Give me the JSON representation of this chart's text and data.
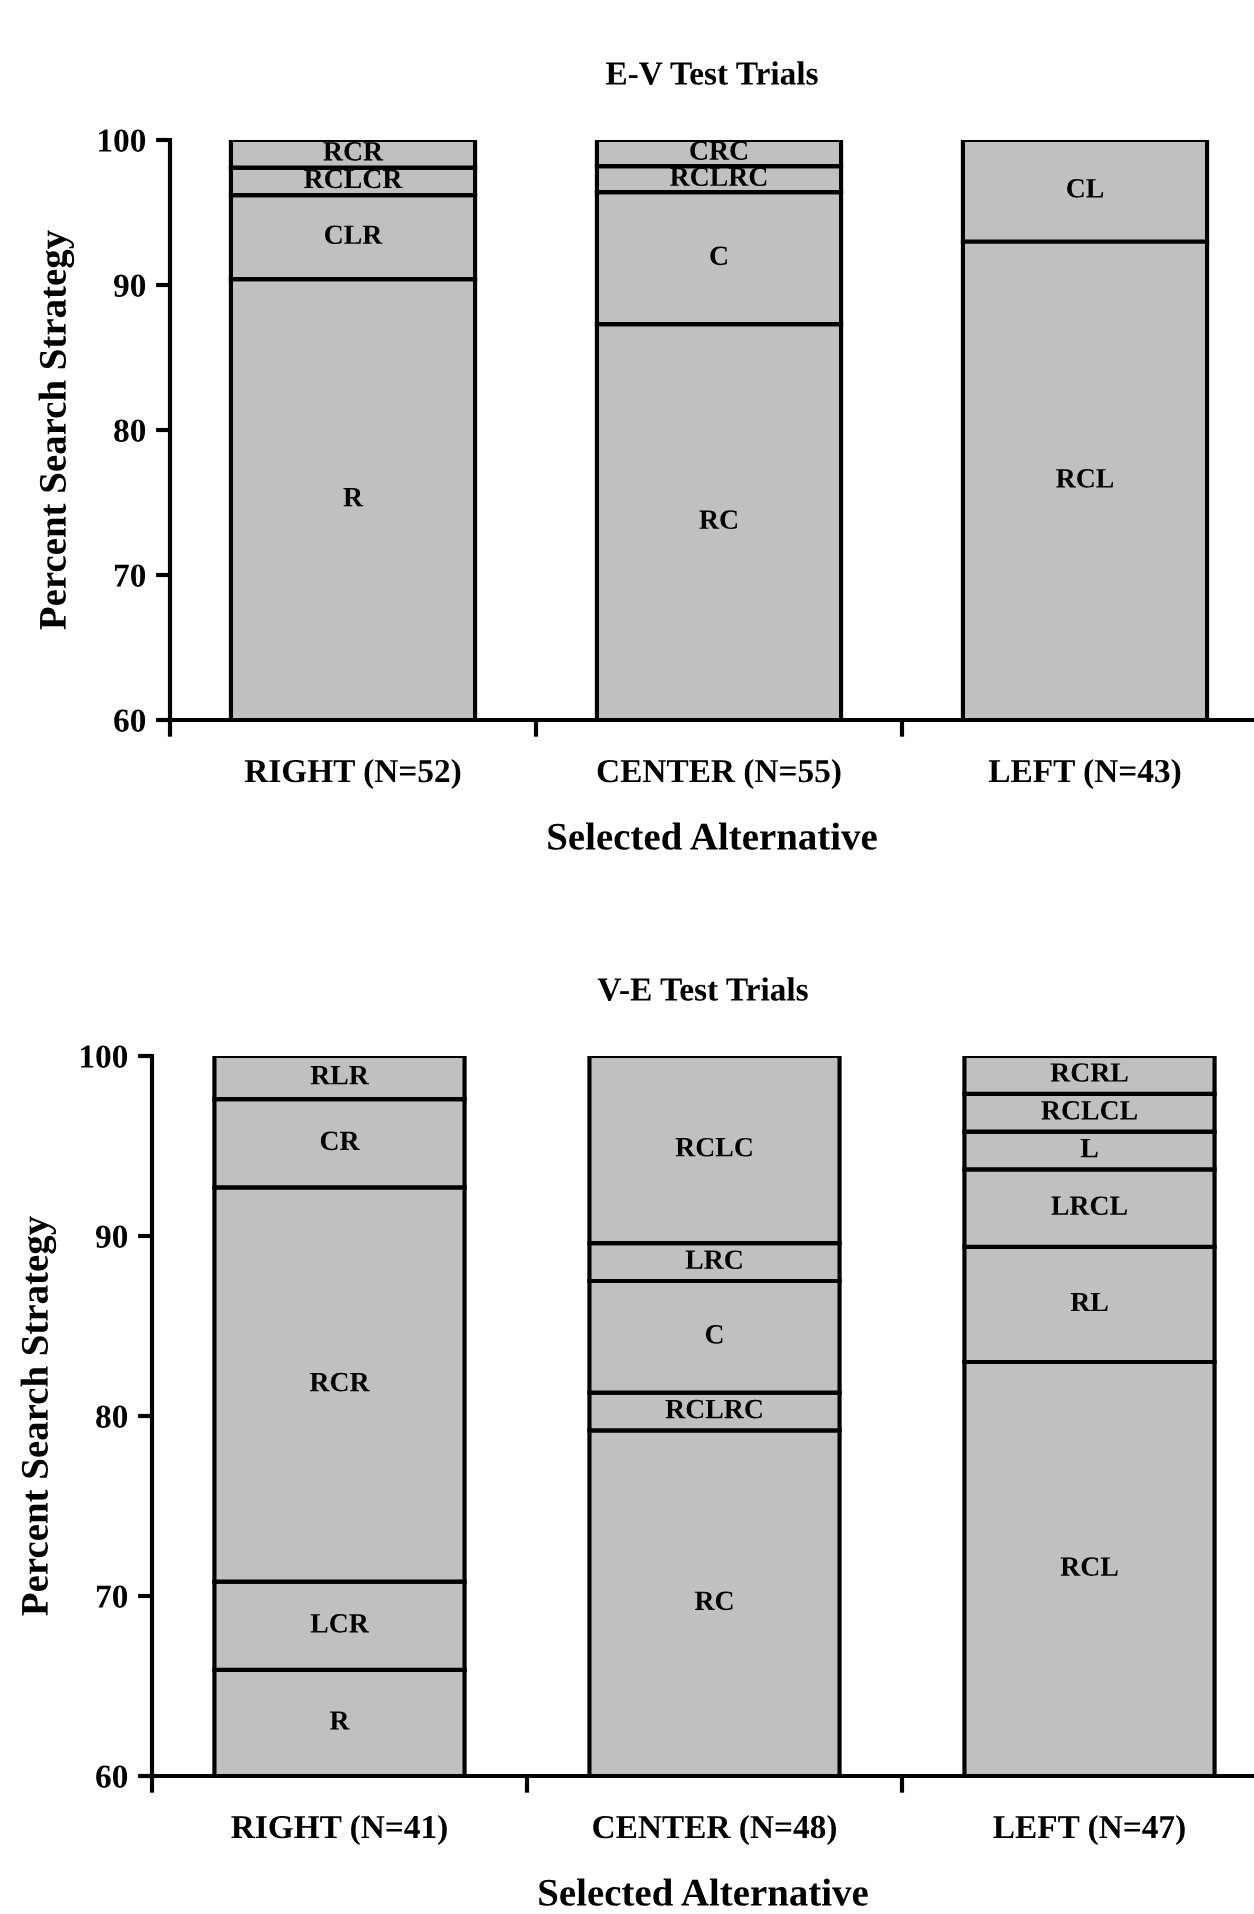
{
  "chart_data": [
    {
      "type": "bar",
      "title": "E-V Test Trials",
      "xlabel": "Selected Alternative",
      "ylabel": "Percent Search Strategy",
      "categories": [
        "RIGHT (N=52)",
        "CENTER (N=55)",
        "LEFT (N=43)"
      ],
      "ylim": [
        60,
        100
      ],
      "yticks": [
        60,
        70,
        80,
        90,
        100
      ],
      "grid": false,
      "legend": false,
      "series": [
        {
          "color": "#c0c0c0",
          "base": [
            0,
            0,
            0
          ],
          "values": [
            90.4,
            87.3,
            93.0
          ],
          "value_labels": [
            "R",
            "RC",
            "RCL"
          ]
        },
        {
          "color": "#c0c0c0",
          "base": [
            90.4,
            87.3,
            93.0
          ],
          "values": [
            5.8,
            9.1,
            7.0
          ],
          "value_labels": [
            "CLR",
            "C",
            "CL"
          ]
        },
        {
          "color": "#c0c0c0",
          "base": [
            96.2,
            96.4,
            null
          ],
          "values": [
            1.9,
            1.8,
            null
          ],
          "value_labels": [
            "RCLCR",
            "RCLRC",
            null
          ]
        },
        {
          "color": "#c0c0c0",
          "base": [
            98.1,
            98.2,
            null
          ],
          "values": [
            1.9,
            1.8,
            null
          ],
          "value_labels": [
            "RCR",
            "CRC",
            null
          ]
        }
      ]
    },
    {
      "type": "bar",
      "title": "V-E Test Trials",
      "xlabel": "Selected Alternative",
      "ylabel": "Percent Search Strategy",
      "categories": [
        "RIGHT (N=41)",
        "CENTER (N=48)",
        "LEFT (N=47)"
      ],
      "ylim": [
        60,
        100
      ],
      "yticks": [
        60,
        70,
        80,
        90,
        100
      ],
      "grid": false,
      "legend": false,
      "series": [
        {
          "color": "#c0c0c0",
          "base": [
            0,
            0,
            0
          ],
          "values": [
            65.9,
            79.2,
            83.0
          ],
          "value_labels": [
            "R",
            "RC",
            "RCL"
          ]
        },
        {
          "color": "#c0c0c0",
          "base": [
            65.9,
            79.2,
            83.0
          ],
          "values": [
            4.9,
            2.1,
            6.4
          ],
          "value_labels": [
            "LCR",
            "RCLRC",
            "RL"
          ]
        },
        {
          "color": "#c0c0c0",
          "base": [
            70.8,
            81.3,
            89.4
          ],
          "values": [
            21.9,
            6.2,
            4.3
          ],
          "value_labels": [
            "RCR",
            "C",
            "LRCL"
          ]
        },
        {
          "color": "#c0c0c0",
          "base": [
            92.7,
            87.5,
            93.7
          ],
          "values": [
            4.9,
            2.1,
            2.1
          ],
          "value_labels": [
            "CR",
            "LRC",
            "L"
          ]
        },
        {
          "color": "#c0c0c0",
          "base": [
            97.6,
            89.6,
            95.8
          ],
          "values": [
            2.4,
            10.4,
            2.1
          ],
          "value_labels": [
            "RLR",
            "RCLC",
            "RCLCL"
          ]
        },
        {
          "color": "#c0c0c0",
          "base": [
            null,
            null,
            97.9
          ],
          "values": [
            null,
            null,
            2.1
          ],
          "value_labels": [
            null,
            null,
            "RCRL"
          ]
        }
      ]
    }
  ]
}
